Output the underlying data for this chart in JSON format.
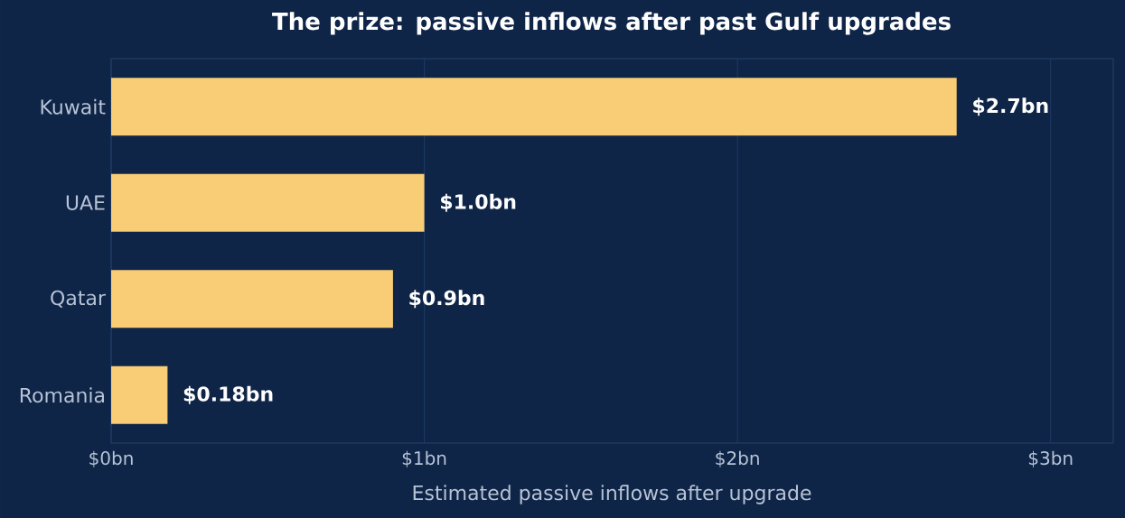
{
  "chart_data": {
    "type": "bar",
    "orientation": "horizontal",
    "title": "The prize: passive inflows after past Gulf upgrades",
    "xlabel": "Estimated passive inflows after upgrade",
    "categories": [
      "Kuwait",
      "UAE",
      "Qatar",
      "Romania"
    ],
    "values": [
      2.7,
      1.0,
      0.9,
      0.18
    ],
    "value_labels": [
      "$2.7bn",
      "$1.0bn",
      "$0.9bn",
      "$0.18bn"
    ],
    "color": "#f9cd75",
    "xlim": [
      0,
      3.2
    ],
    "xticks": [
      {
        "value": 0,
        "label": "$0bn"
      },
      {
        "value": 1,
        "label": "$1bn"
      },
      {
        "value": 2,
        "label": "$2bn"
      },
      {
        "value": 3,
        "label": "$3bn"
      }
    ],
    "grid": "x"
  }
}
